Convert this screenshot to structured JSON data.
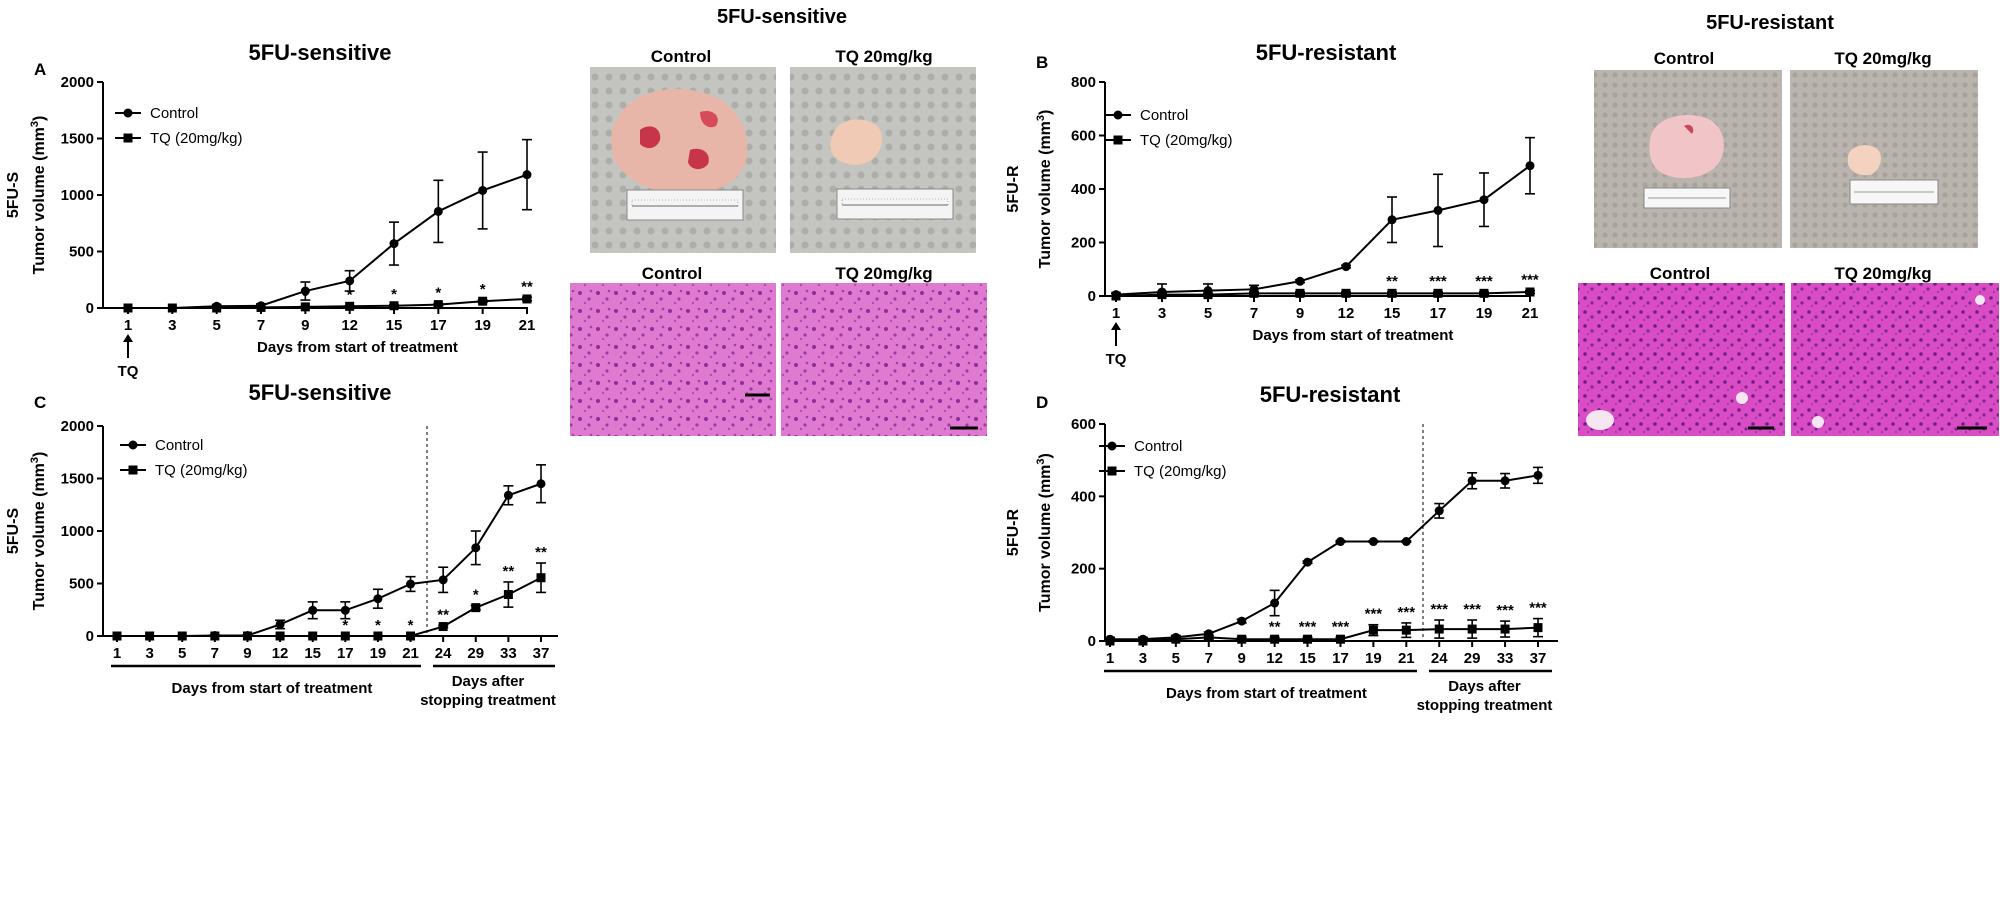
{
  "photo_panels": {
    "sensitive": {
      "header": "5FU-sensitive",
      "control_label": "Control",
      "tq_label": "TQ 20mg/kg",
      "control_label_2": "Control",
      "tq_label_2": "TQ 20mg/kg"
    },
    "resistant": {
      "header": "5FU-resistant",
      "control_label": "Control",
      "tq_label": "TQ 20mg/kg",
      "control_label_2": "Control",
      "tq_label_2": "TQ 20mg/kg"
    }
  },
  "colors": {
    "line": "#000000",
    "tumor_pink": "#e8b6ac",
    "tissue_pink": "#d84fb8",
    "paper": "#b8b8b4"
  },
  "chart_data": [
    {
      "id": "A",
      "letter": "A",
      "type": "line",
      "title": "5FU-sensitive",
      "ylabel": "Tumor volume (mm³)",
      "ylabel_group": "5FU-S",
      "xlabel": "Days from start of treatment",
      "ylim": [
        0,
        2000
      ],
      "yticks": [
        0,
        500,
        1000,
        1500,
        2000
      ],
      "x": [
        "1",
        "3",
        "5",
        "7",
        "9",
        "12",
        "15",
        "17",
        "19",
        "21"
      ],
      "arrow_label": "TQ",
      "legend": "top-left",
      "series": [
        {
          "name": "Control",
          "marker": "circle",
          "values": [
            0,
            0,
            15,
            20,
            150,
            240,
            570,
            855,
            1040,
            1180
          ],
          "errors": [
            0,
            0,
            10,
            15,
            80,
            90,
            190,
            275,
            340,
            310
          ]
        },
        {
          "name": "TQ (20mg/kg)",
          "marker": "square",
          "values": [
            0,
            0,
            0,
            5,
            10,
            15,
            20,
            30,
            60,
            80
          ],
          "errors": [
            0,
            0,
            0,
            3,
            5,
            5,
            8,
            10,
            10,
            15
          ]
        }
      ],
      "annotations": [
        {
          "x": "9",
          "text": "*"
        },
        {
          "x": "12",
          "text": "*"
        },
        {
          "x": "15",
          "text": "*"
        },
        {
          "x": "17",
          "text": "*"
        },
        {
          "x": "19",
          "text": "*"
        },
        {
          "x": "21",
          "text": "**"
        }
      ]
    },
    {
      "id": "B",
      "letter": "B",
      "type": "line",
      "title": "5FU-resistant",
      "ylabel": "Tumor volume (mm³)",
      "ylabel_group": "5FU-R",
      "xlabel": "Days from start of treatment",
      "ylim": [
        0,
        800
      ],
      "yticks": [
        0,
        200,
        400,
        600,
        800
      ],
      "x": [
        "1",
        "3",
        "5",
        "7",
        "9",
        "12",
        "15",
        "17",
        "19",
        "21"
      ],
      "arrow_label": "TQ",
      "legend": "top-left",
      "series": [
        {
          "name": "Control",
          "marker": "circle",
          "values": [
            5,
            15,
            20,
            25,
            55,
            110,
            285,
            320,
            360,
            487
          ],
          "errors": [
            5,
            30,
            25,
            15,
            5,
            5,
            85,
            135,
            100,
            105
          ]
        },
        {
          "name": "TQ (20mg/kg)",
          "marker": "square",
          "values": [
            0,
            5,
            5,
            10,
            10,
            10,
            10,
            10,
            10,
            15
          ],
          "errors": [
            0,
            5,
            5,
            5,
            5,
            5,
            5,
            5,
            5,
            5
          ]
        }
      ],
      "annotations": [
        {
          "x": "15",
          "text": "**"
        },
        {
          "x": "17",
          "text": "***"
        },
        {
          "x": "19",
          "text": "***"
        },
        {
          "x": "21",
          "text": "***"
        }
      ]
    },
    {
      "id": "C",
      "letter": "C",
      "type": "line",
      "title": "5FU-sensitive",
      "ylabel": "Tumor volume (mm³)",
      "ylabel_group": "5FU-S",
      "xlabel": "Days from start of treatment",
      "xlabel2": "Days after\nstopping treatment",
      "ylim": [
        0,
        2000
      ],
      "yticks": [
        0,
        500,
        1000,
        1500,
        2000
      ],
      "x": [
        "1",
        "3",
        "5",
        "7",
        "9",
        "12",
        "15",
        "17",
        "19",
        "21",
        "24",
        "29",
        "33",
        "37"
      ],
      "split_after": 9,
      "legend": "top-left",
      "series": [
        {
          "name": "Control",
          "marker": "circle",
          "values": [
            0,
            0,
            0,
            5,
            5,
            110,
            245,
            245,
            355,
            495,
            535,
            840,
            1340,
            1450
          ],
          "errors": [
            0,
            0,
            0,
            5,
            5,
            40,
            80,
            80,
            90,
            70,
            120,
            160,
            90,
            180
          ]
        },
        {
          "name": "TQ (20mg/kg)",
          "marker": "square",
          "values": [
            0,
            0,
            0,
            0,
            0,
            0,
            0,
            0,
            0,
            0,
            90,
            270,
            395,
            555
          ],
          "errors": [
            0,
            0,
            0,
            0,
            0,
            0,
            0,
            0,
            0,
            0,
            10,
            20,
            120,
            140
          ]
        }
      ],
      "annotations": [
        {
          "x": "17",
          "text": "*"
        },
        {
          "x": "19",
          "text": "*"
        },
        {
          "x": "21",
          "text": "*"
        },
        {
          "x": "24",
          "text": "**"
        },
        {
          "x": "29",
          "text": "*"
        },
        {
          "x": "33",
          "text": "**"
        },
        {
          "x": "37",
          "text": "**"
        }
      ]
    },
    {
      "id": "D",
      "letter": "D",
      "type": "line",
      "title": "5FU-resistant",
      "ylabel": "Tumor volume (mm³)",
      "ylabel_group": "5FU-R",
      "xlabel": "Days from start of treatment",
      "xlabel2": "Days after\nstopping treatment",
      "ylim": [
        0,
        600
      ],
      "yticks": [
        0,
        200,
        400,
        600
      ],
      "x": [
        "1",
        "3",
        "5",
        "7",
        "9",
        "12",
        "15",
        "17",
        "19",
        "21",
        "24",
        "29",
        "33",
        "37"
      ],
      "split_after": 9,
      "legend": "top-left",
      "series": [
        {
          "name": "Control",
          "marker": "circle",
          "values": [
            5,
            5,
            10,
            20,
            55,
            105,
            218,
            275,
            275,
            275,
            360,
            443,
            443,
            458
          ],
          "errors": [
            5,
            5,
            5,
            5,
            5,
            35,
            3,
            2,
            2,
            2,
            20,
            22,
            20,
            22
          ]
        },
        {
          "name": "TQ (20mg/kg)",
          "marker": "square",
          "values": [
            0,
            0,
            5,
            10,
            5,
            5,
            5,
            5,
            30,
            30,
            33,
            33,
            33,
            37
          ],
          "errors": [
            0,
            0,
            5,
            5,
            5,
            5,
            5,
            5,
            15,
            20,
            25,
            25,
            22,
            25
          ]
        }
      ],
      "annotations": [
        {
          "x": "12",
          "text": "**"
        },
        {
          "x": "15",
          "text": "***"
        },
        {
          "x": "17",
          "text": "***"
        },
        {
          "x": "19",
          "text": "***"
        },
        {
          "x": "21",
          "text": "***"
        },
        {
          "x": "24",
          "text": "***"
        },
        {
          "x": "29",
          "text": "***"
        },
        {
          "x": "33",
          "text": "***"
        },
        {
          "x": "37",
          "text": "***"
        }
      ]
    }
  ]
}
